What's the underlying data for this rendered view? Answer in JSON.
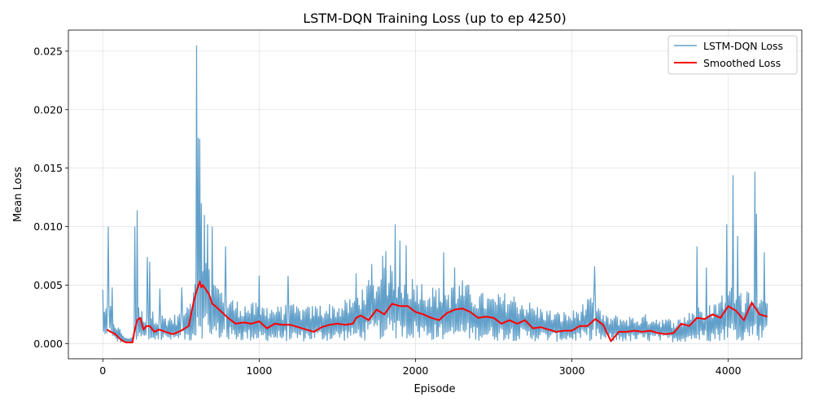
{
  "chart_data": {
    "type": "line",
    "title": "LSTM-DQN Training Loss (up to ep 4250)",
    "xlabel": "Episode",
    "ylabel": "Mean Loss",
    "xlim": [
      -220,
      4470
    ],
    "ylim": [
      -0.0013,
      0.0268
    ],
    "x_ticks": [
      0,
      1000,
      2000,
      3000,
      4000
    ],
    "x_tick_labels": [
      "0",
      "1000",
      "2000",
      "3000",
      "4000"
    ],
    "y_ticks": [
      0.0,
      0.005,
      0.01,
      0.015,
      0.02,
      0.025
    ],
    "y_tick_labels": [
      "0.000",
      "0.005",
      "0.010",
      "0.015",
      "0.020",
      "0.025"
    ],
    "grid": true,
    "legend_position": "top-right",
    "series": [
      {
        "name": "LSTM-DQN Loss",
        "color": "#1f77b4",
        "opacity": 0.7,
        "line_width": 1.5,
        "style": "noisy-raw",
        "x_range": [
          0,
          4250
        ],
        "envelope_x": [
          0,
          20,
          40,
          60,
          100,
          150,
          200,
          220,
          240,
          280,
          320,
          380,
          450,
          500,
          560,
          600,
          610,
          620,
          640,
          660,
          700,
          760,
          800,
          850,
          900,
          1000,
          1100,
          1200,
          1300,
          1400,
          1500,
          1600,
          1700,
          1800,
          1850,
          1900,
          2000,
          2100,
          2200,
          2300,
          2400,
          2500,
          2600,
          2700,
          2800,
          2900,
          3000,
          3100,
          3150,
          3200,
          3300,
          3400,
          3500,
          3600,
          3700,
          3750,
          3800,
          3900,
          4000,
          4050,
          4100,
          4150,
          4200,
          4250
        ],
        "envelope_high": [
          0.0045,
          0.003,
          0.0048,
          0.0025,
          0.0015,
          0.0005,
          0.0008,
          0.0035,
          0.003,
          0.0028,
          0.0028,
          0.0026,
          0.0025,
          0.0028,
          0.0035,
          0.006,
          0.0095,
          0.008,
          0.0085,
          0.0075,
          0.006,
          0.005,
          0.0042,
          0.0038,
          0.0036,
          0.0035,
          0.0032,
          0.0034,
          0.0032,
          0.0035,
          0.0035,
          0.004,
          0.0055,
          0.0065,
          0.0068,
          0.0062,
          0.0058,
          0.005,
          0.0048,
          0.0055,
          0.0045,
          0.0042,
          0.0045,
          0.0038,
          0.0032,
          0.0028,
          0.0028,
          0.0038,
          0.0042,
          0.0025,
          0.0025,
          0.0024,
          0.0026,
          0.0022,
          0.0022,
          0.003,
          0.0032,
          0.0035,
          0.005,
          0.0058,
          0.0042,
          0.0055,
          0.0048,
          0.0045
        ],
        "spikes": [
          {
            "x": 0,
            "y": 0.0046
          },
          {
            "x": 35,
            "y": 0.01
          },
          {
            "x": 60,
            "y": 0.0048
          },
          {
            "x": 205,
            "y": 0.01
          },
          {
            "x": 220,
            "y": 0.0114
          },
          {
            "x": 285,
            "y": 0.0074
          },
          {
            "x": 300,
            "y": 0.007
          },
          {
            "x": 365,
            "y": 0.0047
          },
          {
            "x": 505,
            "y": 0.0048
          },
          {
            "x": 600,
            "y": 0.0255
          },
          {
            "x": 610,
            "y": 0.0176
          },
          {
            "x": 618,
            "y": 0.0175
          },
          {
            "x": 630,
            "y": 0.012
          },
          {
            "x": 650,
            "y": 0.011
          },
          {
            "x": 670,
            "y": 0.0102
          },
          {
            "x": 700,
            "y": 0.01
          },
          {
            "x": 785,
            "y": 0.0083
          },
          {
            "x": 1000,
            "y": 0.0058
          },
          {
            "x": 1185,
            "y": 0.0058
          },
          {
            "x": 1620,
            "y": 0.006
          },
          {
            "x": 1720,
            "y": 0.0068
          },
          {
            "x": 1790,
            "y": 0.0075
          },
          {
            "x": 1810,
            "y": 0.0079
          },
          {
            "x": 1870,
            "y": 0.0102
          },
          {
            "x": 1900,
            "y": 0.0088
          },
          {
            "x": 1940,
            "y": 0.0084
          },
          {
            "x": 2180,
            "y": 0.0078
          },
          {
            "x": 2250,
            "y": 0.0065
          },
          {
            "x": 3145,
            "y": 0.0066
          },
          {
            "x": 3800,
            "y": 0.0083
          },
          {
            "x": 3860,
            "y": 0.0065
          },
          {
            "x": 3990,
            "y": 0.0102
          },
          {
            "x": 4030,
            "y": 0.0144
          },
          {
            "x": 4060,
            "y": 0.0092
          },
          {
            "x": 4170,
            "y": 0.0147
          },
          {
            "x": 4180,
            "y": 0.0111
          },
          {
            "x": 4230,
            "y": 0.0078
          }
        ]
      },
      {
        "name": "Smoothed Loss",
        "color": "#ff0000",
        "line_width": 2,
        "x": [
          25,
          50,
          80,
          110,
          130,
          150,
          170,
          190,
          200,
          220,
          240,
          260,
          280,
          300,
          330,
          360,
          400,
          450,
          500,
          550,
          580,
          600,
          620,
          630,
          640,
          660,
          680,
          700,
          720,
          760,
          800,
          850,
          900,
          950,
          1000,
          1050,
          1100,
          1150,
          1200,
          1250,
          1300,
          1350,
          1400,
          1450,
          1500,
          1550,
          1600,
          1620,
          1650,
          1700,
          1750,
          1800,
          1850,
          1900,
          1950,
          2000,
          2050,
          2100,
          2150,
          2200,
          2250,
          2300,
          2350,
          2400,
          2450,
          2500,
          2550,
          2600,
          2650,
          2700,
          2750,
          2800,
          2850,
          2900,
          2950,
          3000,
          3050,
          3100,
          3150,
          3200,
          3250,
          3300,
          3350,
          3400,
          3450,
          3500,
          3550,
          3600,
          3650,
          3700,
          3750,
          3800,
          3850,
          3900,
          3950,
          4000,
          4050,
          4100,
          4150,
          4200,
          4250
        ],
        "values": [
          0.0012,
          0.001,
          0.0008,
          0.0004,
          0.0002,
          0.0001,
          0.0001,
          0.0001,
          0.0009,
          0.002,
          0.0022,
          0.0012,
          0.0015,
          0.0015,
          0.001,
          0.0012,
          0.001,
          0.0008,
          0.0011,
          0.0015,
          0.0035,
          0.0045,
          0.0053,
          0.0048,
          0.005,
          0.0046,
          0.0042,
          0.0034,
          0.0032,
          0.0027,
          0.0022,
          0.0017,
          0.0018,
          0.0017,
          0.0019,
          0.0013,
          0.0017,
          0.0016,
          0.0016,
          0.0014,
          0.0012,
          0.001,
          0.0014,
          0.0016,
          0.0017,
          0.0016,
          0.0017,
          0.0022,
          0.0024,
          0.002,
          0.0029,
          0.0025,
          0.0034,
          0.0032,
          0.0032,
          0.0027,
          0.0025,
          0.0022,
          0.002,
          0.0026,
          0.0029,
          0.003,
          0.0027,
          0.0022,
          0.0023,
          0.0022,
          0.0017,
          0.002,
          0.0017,
          0.002,
          0.0013,
          0.0014,
          0.0012,
          0.001,
          0.0011,
          0.0011,
          0.0015,
          0.0015,
          0.0021,
          0.0016,
          0.0002,
          0.001,
          0.001,
          0.0011,
          0.001,
          0.0011,
          0.0009,
          0.0008,
          0.0009,
          0.0017,
          0.0015,
          0.0022,
          0.0021,
          0.0025,
          0.0022,
          0.0032,
          0.0028,
          0.002,
          0.0035,
          0.0025,
          0.0023
        ]
      }
    ]
  }
}
